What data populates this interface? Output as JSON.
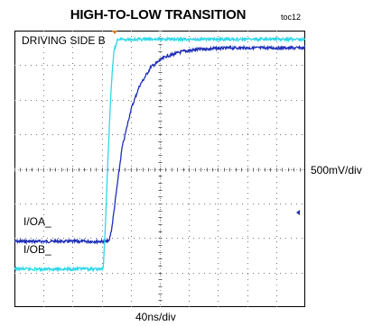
{
  "chart_data": {
    "type": "line",
    "title": "HIGH-TO-LOW TRANSITION",
    "figure_id": "toc12",
    "annotation": "DRIVING SIDE B",
    "xlabel": "40ns/div",
    "ylabel": "500mV/div",
    "grid": true,
    "x_divisions": 10,
    "y_divisions": 8,
    "xlim": [
      0,
      10
    ],
    "ylim": [
      0,
      8
    ],
    "series": [
      {
        "name": "I/OA_",
        "color": "#1f2fb8",
        "x": [
          0,
          3.25,
          3.35,
          3.5,
          3.7,
          4.0,
          4.3,
          4.7,
          5.2,
          5.8,
          6.5,
          7.5,
          8.5,
          10
        ],
        "y": [
          1.9,
          1.9,
          2.3,
          3.3,
          4.6,
          5.7,
          6.4,
          6.95,
          7.25,
          7.4,
          7.47,
          7.5,
          7.5,
          7.5
        ]
      },
      {
        "name": "I/OB_",
        "color": "#2ed8e8",
        "x": [
          0,
          3.05,
          3.12,
          3.22,
          3.32,
          3.42,
          3.55,
          3.7,
          10
        ],
        "y": [
          1.1,
          1.1,
          2.2,
          4.4,
          6.3,
          7.4,
          7.75,
          7.75,
          7.75
        ]
      }
    ]
  }
}
